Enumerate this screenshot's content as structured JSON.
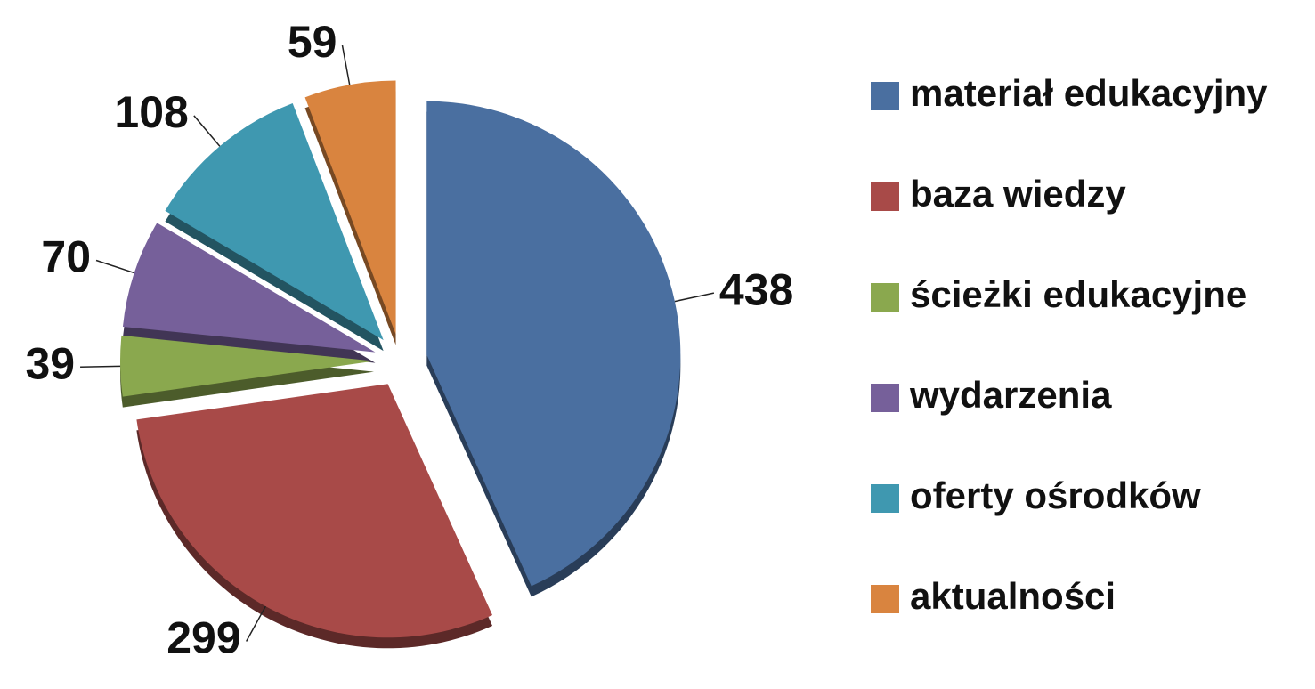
{
  "chart_data": {
    "type": "pie",
    "categories": [
      "materiał edukacyjny",
      "baza wiedzy",
      "ścieżki edukacyjne",
      "wydarzenia",
      "oferty ośrodków",
      "aktualności"
    ],
    "values": [
      438,
      299,
      39,
      70,
      108,
      59
    ],
    "colors": [
      "#4a6fa0",
      "#a84a48",
      "#8aa84e",
      "#76609a",
      "#3f98b0",
      "#d9843f"
    ],
    "legend": "right"
  }
}
